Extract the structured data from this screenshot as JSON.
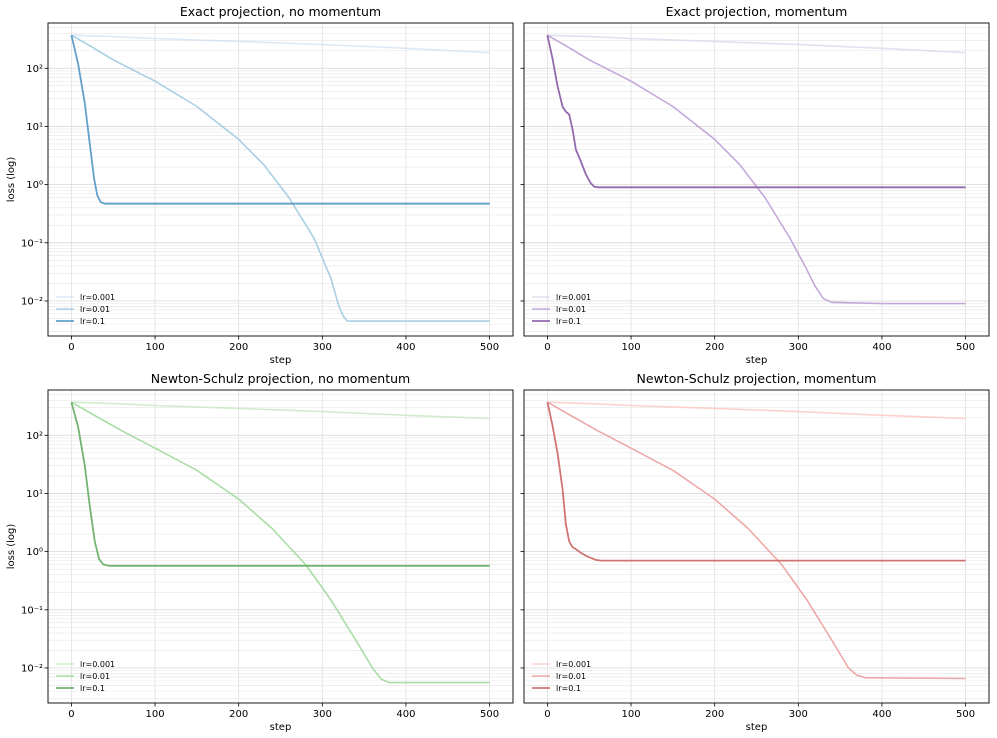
{
  "chart_data": [
    {
      "type": "line",
      "title": "Exact projection, no momentum",
      "xlabel": "step",
      "ylabel": "loss (log)",
      "xlim": [
        -28,
        528
      ],
      "ylim": [
        0.0025,
        600
      ],
      "yscale": "log",
      "xticks": [
        "0",
        "100",
        "200",
        "300",
        "400",
        "500"
      ],
      "yticks": [
        "10²",
        "10¹",
        "10⁰",
        "10⁻¹",
        "10⁻²"
      ],
      "grid": true,
      "legend_position": "lower-left",
      "series": [
        {
          "name": "lr=0.001",
          "color": "#c6dbef",
          "alpha": 0.6,
          "width": 1.6,
          "x": [
            0,
            50,
            100,
            200,
            300,
            400,
            500
          ],
          "y": [
            370,
            350,
            325,
            290,
            255,
            220,
            185
          ]
        },
        {
          "name": "lr=0.01",
          "color": "#9ecae1",
          "alpha": 0.9,
          "width": 1.6,
          "x": [
            0,
            25,
            50,
            100,
            150,
            200,
            230,
            260,
            290,
            310,
            320,
            325,
            330,
            400,
            500
          ],
          "y": [
            370,
            230,
            140,
            60,
            22,
            6,
            2.2,
            0.6,
            0.12,
            0.025,
            0.008,
            0.0055,
            0.0045,
            0.0045,
            0.0045
          ]
        },
        {
          "name": "lr=0.1",
          "color": "#5a9bc6",
          "alpha": 0.95,
          "width": 1.8,
          "x": [
            0,
            8,
            16,
            22,
            27,
            31,
            35,
            40,
            500
          ],
          "y": [
            370,
            120,
            25,
            5,
            1.3,
            0.65,
            0.5,
            0.47,
            0.47
          ]
        }
      ]
    },
    {
      "type": "line",
      "title": "Exact projection, momentum",
      "xlabel": "step",
      "ylabel": "",
      "xlim": [
        -28,
        528
      ],
      "ylim": [
        0.0025,
        600
      ],
      "yscale": "log",
      "xticks": [
        "0",
        "100",
        "200",
        "300",
        "400",
        "500"
      ],
      "yticks": [],
      "grid": true,
      "legend_position": "lower-left",
      "series": [
        {
          "name": "lr=0.001",
          "color": "#dadaeb",
          "alpha": 0.8,
          "width": 1.6,
          "x": [
            0,
            50,
            100,
            200,
            300,
            400,
            500
          ],
          "y": [
            370,
            350,
            325,
            290,
            255,
            220,
            185
          ]
        },
        {
          "name": "lr=0.01",
          "color": "#bc9fd6",
          "alpha": 0.9,
          "width": 1.6,
          "x": [
            0,
            25,
            50,
            100,
            150,
            200,
            230,
            260,
            290,
            310,
            320,
            330,
            340,
            400,
            500
          ],
          "y": [
            370,
            230,
            140,
            60,
            22,
            6,
            2.2,
            0.6,
            0.12,
            0.035,
            0.018,
            0.011,
            0.0095,
            0.009,
            0.009
          ]
        },
        {
          "name": "lr=0.1",
          "color": "#8c62aa",
          "alpha": 0.95,
          "width": 1.8,
          "x": [
            0,
            6,
            12,
            18,
            22,
            26,
            30,
            34,
            40,
            46,
            52,
            56,
            60,
            70,
            500
          ],
          "y": [
            370,
            150,
            50,
            22,
            18,
            16,
            9,
            4,
            2.5,
            1.5,
            1.05,
            0.92,
            0.9,
            0.9,
            0.9
          ]
        }
      ]
    },
    {
      "type": "line",
      "title": "Newton-Schulz projection, no momentum",
      "xlabel": "step",
      "ylabel": "loss (log)",
      "xlim": [
        -28,
        528
      ],
      "ylim": [
        0.0025,
        600
      ],
      "yscale": "log",
      "xticks": [
        "0",
        "100",
        "200",
        "300",
        "400",
        "500"
      ],
      "yticks": [
        "10²",
        "10¹",
        "10⁰",
        "10⁻¹",
        "10⁻²"
      ],
      "grid": true,
      "legend_position": "lower-left",
      "series": [
        {
          "name": "lr=0.001",
          "color": "#c7e9c0",
          "alpha": 0.8,
          "width": 1.6,
          "x": [
            0,
            50,
            100,
            200,
            300,
            400,
            500
          ],
          "y": [
            370,
            350,
            325,
            290,
            255,
            220,
            195
          ]
        },
        {
          "name": "lr=0.01",
          "color": "#a1d99b",
          "alpha": 0.9,
          "width": 1.6,
          "x": [
            0,
            30,
            60,
            100,
            150,
            200,
            240,
            280,
            310,
            340,
            360,
            370,
            380,
            500
          ],
          "y": [
            370,
            210,
            120,
            60,
            25,
            8,
            2.5,
            0.6,
            0.15,
            0.03,
            0.01,
            0.0065,
            0.0056,
            0.0056
          ]
        },
        {
          "name": "lr=0.1",
          "color": "#6aaf6a",
          "alpha": 0.95,
          "width": 1.8,
          "x": [
            0,
            8,
            16,
            22,
            28,
            33,
            38,
            45,
            500
          ],
          "y": [
            370,
            140,
            30,
            6,
            1.5,
            0.75,
            0.6,
            0.57,
            0.57
          ]
        }
      ]
    },
    {
      "type": "line",
      "title": "Newton-Schulz projection, momentum",
      "xlabel": "step",
      "ylabel": "",
      "xlim": [
        -28,
        528
      ],
      "ylim": [
        0.0025,
        600
      ],
      "yscale": "log",
      "xticks": [
        "0",
        "100",
        "200",
        "300",
        "400",
        "500"
      ],
      "yticks": [],
      "grid": true,
      "legend_position": "lower-left",
      "series": [
        {
          "name": "lr=0.001",
          "color": "#fcc5c0",
          "alpha": 0.8,
          "width": 1.6,
          "x": [
            0,
            50,
            100,
            200,
            300,
            400,
            500
          ],
          "y": [
            370,
            350,
            325,
            290,
            255,
            220,
            195
          ]
        },
        {
          "name": "lr=0.01",
          "color": "#eba0a0",
          "alpha": 0.9,
          "width": 1.6,
          "x": [
            0,
            30,
            60,
            100,
            150,
            200,
            240,
            280,
            310,
            340,
            360,
            370,
            380,
            500
          ],
          "y": [
            370,
            210,
            120,
            60,
            25,
            8,
            2.5,
            0.6,
            0.15,
            0.03,
            0.01,
            0.0075,
            0.0068,
            0.0066
          ]
        },
        {
          "name": "lr=0.1",
          "color": "#cf6d6d",
          "alpha": 0.95,
          "width": 1.8,
          "x": [
            0,
            6,
            12,
            18,
            22,
            26,
            30,
            34,
            40,
            46,
            52,
            58,
            64,
            500
          ],
          "y": [
            370,
            150,
            50,
            12,
            3,
            1.5,
            1.2,
            1.1,
            0.95,
            0.85,
            0.78,
            0.72,
            0.7,
            0.7
          ]
        }
      ]
    }
  ]
}
